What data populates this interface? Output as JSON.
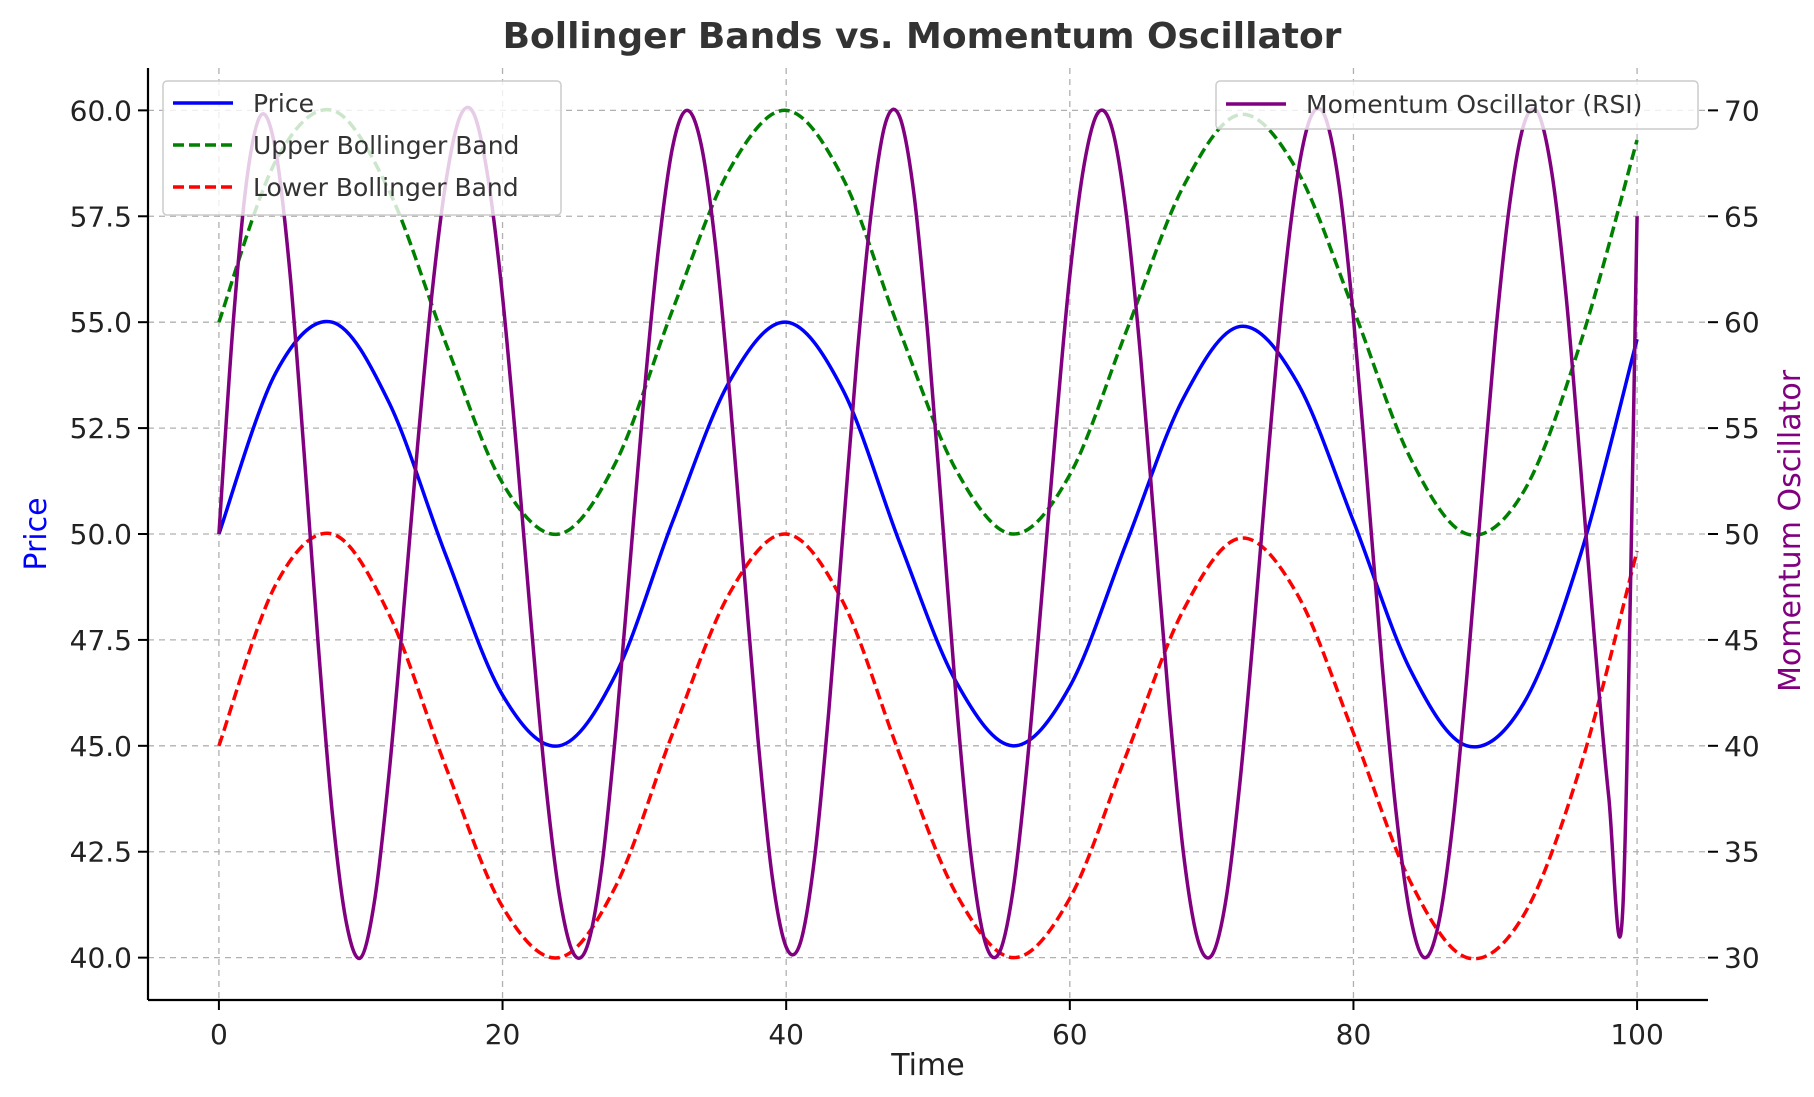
{
  "chart_data": {
    "type": "line",
    "title": "Bollinger Bands vs. Momentum Oscillator",
    "xlabel": "Time",
    "ylabel_left": "Price",
    "ylabel_right": "Momentum Oscillator",
    "xlim": [
      -5,
      105
    ],
    "ylim_left": [
      39,
      61
    ],
    "ylim_right": [
      28,
      72
    ],
    "xticks": [
      0,
      20,
      40,
      60,
      80,
      100
    ],
    "yticks_left": [
      40.0,
      42.5,
      45.0,
      47.5,
      50.0,
      52.5,
      55.0,
      57.5,
      60.0
    ],
    "yticks_right": [
      30,
      35,
      40,
      45,
      50,
      55,
      60,
      65,
      70
    ],
    "grid": true,
    "legend_left_placement": "upper-left",
    "legend_right_placement": "upper-right",
    "colors": {
      "price": "#0000ff",
      "upper": "#008000",
      "lower": "#ff0000",
      "momentum": "#800080",
      "left_axis_label": "#0000ff",
      "right_axis_label": "#800080"
    },
    "x": [
      0,
      4,
      8,
      12,
      16,
      20,
      24,
      28,
      32,
      36,
      40,
      44,
      48,
      52,
      56,
      60,
      64,
      68,
      72,
      76,
      80,
      84,
      88,
      92,
      96,
      100
    ],
    "series": [
      {
        "name": "Price",
        "axis": "left",
        "style": "solid",
        "values": [
          50.0,
          53.8,
          55.0,
          53.1,
          49.5,
          46.2,
          45.0,
          46.7,
          50.3,
          53.6,
          55.0,
          53.4,
          49.8,
          46.5,
          45.0,
          46.4,
          49.8,
          53.2,
          54.9,
          53.6,
          50.3,
          46.8,
          45.0,
          46.0,
          49.5,
          54.6
        ]
      },
      {
        "name": "Upper Bollinger Band",
        "axis": "left",
        "style": "dashed",
        "values": [
          55.0,
          58.8,
          60.0,
          58.1,
          54.5,
          51.2,
          50.0,
          51.7,
          55.3,
          58.6,
          60.0,
          58.4,
          54.8,
          51.5,
          50.0,
          51.4,
          54.8,
          58.2,
          59.9,
          58.6,
          55.3,
          51.8,
          50.0,
          51.0,
          54.5,
          59.3
        ]
      },
      {
        "name": "Lower Bollinger Band",
        "axis": "left",
        "style": "dashed",
        "values": [
          45.0,
          48.8,
          50.0,
          48.1,
          44.5,
          41.2,
          40.0,
          41.7,
          45.3,
          48.6,
          50.0,
          48.4,
          44.8,
          41.5,
          40.0,
          41.4,
          44.8,
          48.2,
          49.9,
          48.6,
          45.3,
          41.8,
          40.0,
          41.0,
          44.5,
          49.6
        ]
      },
      {
        "name": "Momentum Oscillator (RSI)",
        "axis": "right",
        "style": "solid",
        "x": [
          0,
          1,
          2,
          3,
          4,
          5,
          6,
          7,
          8,
          9,
          10,
          11,
          12,
          13,
          14,
          15,
          16,
          17,
          18,
          19,
          20,
          21,
          22,
          23,
          24,
          25,
          26,
          27,
          28,
          29,
          30,
          31,
          32,
          33,
          34,
          35,
          36,
          37,
          38,
          39,
          40,
          41,
          42,
          43,
          44,
          45,
          46,
          47,
          48,
          49,
          50,
          51,
          52,
          53,
          54,
          55,
          56,
          57,
          58,
          59,
          60,
          61,
          62,
          63,
          64,
          65,
          66,
          67,
          68,
          69,
          70,
          71,
          72,
          73,
          74,
          75,
          76,
          77,
          78,
          79,
          80,
          81,
          82,
          83,
          84,
          85,
          86,
          87,
          88,
          89,
          90,
          91,
          92,
          93,
          94,
          95,
          96,
          97,
          98,
          99,
          100
        ],
        "values": [
          50.0,
          59.9,
          66.9,
          69.8,
          68.1,
          62.4,
          53.9,
          44.8,
          36.8,
          31.6,
          30.0,
          32.8,
          38.7,
          46.2,
          54.1,
          61.2,
          66.6,
          69.7,
          69.8,
          66.7,
          61.2,
          53.9,
          45.9,
          38.5,
          33.0,
          30.2,
          30.6,
          34.3,
          40.8,
          48.7,
          56.7,
          63.5,
          68.3,
          70.0,
          68.4,
          63.7,
          56.7,
          48.5,
          40.4,
          33.9,
          30.5,
          30.7,
          34.7,
          41.6,
          50.0,
          58.4,
          65.2,
          69.4,
          69.7,
          66.1,
          59.3,
          50.8,
          42.1,
          35.0,
          30.8,
          30.2,
          33.2,
          39.2,
          46.9,
          54.9,
          62.2,
          67.4,
          69.9,
          69.1,
          65.0,
          58.3,
          50.1,
          41.9,
          35.0,
          30.9,
          30.1,
          32.7,
          38.3,
          45.7,
          53.8,
          61.2,
          66.7,
          69.7,
          69.7,
          66.4,
          60.2,
          52.2,
          44.0,
          36.9,
          32.0,
          30.0,
          31.6,
          36.3,
          43.3,
          51.4,
          59.3,
          65.5,
          69.3,
          69.9,
          67.0,
          61.2,
          53.3,
          45.0,
          37.6,
          32.4,
          65.0
        ]
      }
    ]
  }
}
